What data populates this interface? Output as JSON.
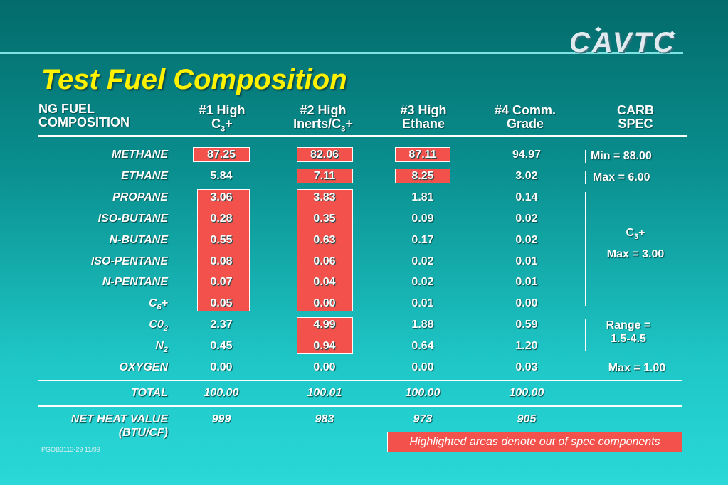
{
  "logo": {
    "text": "CAVTC"
  },
  "title": "Test Fuel Composition",
  "headers": {
    "composition": [
      "NG FUEL",
      "COMPOSITION"
    ],
    "fuel1": [
      "#1 High",
      "C",
      "3",
      "+"
    ],
    "fuel2": [
      "#2 High",
      "Inerts/C",
      "3",
      "+"
    ],
    "fuel3": [
      "#3 High",
      "Ethane"
    ],
    "fuel4": [
      "#4 Comm.",
      "Grade"
    ],
    "carb": [
      "CARB",
      "SPEC"
    ]
  },
  "rows": [
    {
      "label": "METHANE",
      "sub": "",
      "suffix": "",
      "values": [
        "87.25",
        "82.06",
        "87.11",
        "94.97"
      ]
    },
    {
      "label": "ETHANE",
      "sub": "",
      "suffix": "",
      "values": [
        "5.84",
        "7.11",
        "8.25",
        "3.02"
      ]
    },
    {
      "label": "PROPANE",
      "sub": "",
      "suffix": "",
      "values": [
        "3.06",
        "3.83",
        "1.81",
        "0.14"
      ]
    },
    {
      "label": "ISO-BUTANE",
      "sub": "",
      "suffix": "",
      "values": [
        "0.28",
        "0.35",
        "0.09",
        "0.02"
      ]
    },
    {
      "label": "N-BUTANE",
      "sub": "",
      "suffix": "",
      "values": [
        "0.55",
        "0.63",
        "0.17",
        "0.02"
      ]
    },
    {
      "label": "ISO-PENTANE",
      "sub": "",
      "suffix": "",
      "values": [
        "0.08",
        "0.06",
        "0.02",
        "0.01"
      ]
    },
    {
      "label": "N-PENTANE",
      "sub": "",
      "suffix": "",
      "values": [
        "0.07",
        "0.04",
        "0.02",
        "0.01"
      ]
    },
    {
      "label": "C",
      "sub": "6",
      "suffix": "+",
      "values": [
        "0.05",
        "0.00",
        "0.01",
        "0.00"
      ]
    },
    {
      "label": "C0",
      "sub": "2",
      "suffix": "",
      "values": [
        "2.37",
        "4.99",
        "1.88",
        "0.59"
      ]
    },
    {
      "label": "N",
      "sub": "2",
      "suffix": "",
      "values": [
        "0.45",
        "0.94",
        "0.64",
        "1.20"
      ]
    },
    {
      "label": "OXYGEN",
      "sub": "",
      "suffix": "",
      "values": [
        "0.00",
        "0.00",
        "0.00",
        "0.03"
      ]
    }
  ],
  "total": {
    "label": "TOTAL",
    "values": [
      "100.00",
      "100.01",
      "100.00",
      "100.00"
    ]
  },
  "heat": {
    "label": [
      "NET HEAT VALUE",
      "(BTU/CF)"
    ],
    "values": [
      "999",
      "983",
      "973",
      "905"
    ]
  },
  "spec": {
    "methane": "Min = 88.00",
    "ethane": "Max = 6.00",
    "c3_label": "C",
    "c3_sub": "3",
    "c3_suffix": "+",
    "c3_max": "Max = 3.00",
    "range": [
      "Range =",
      "1.5-4.5"
    ],
    "oxygen": "Max = 1.00"
  },
  "note": "Highlighted areas denote out of spec components",
  "footer": "PGOB3113-29 11/99",
  "colors": {
    "highlight": "#f3524c",
    "title": "#fff200"
  }
}
